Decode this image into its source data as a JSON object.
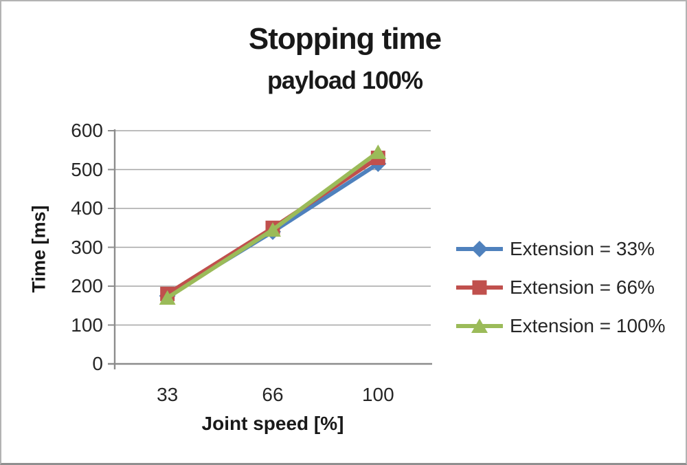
{
  "chart_data": {
    "type": "line",
    "title": "Stopping time",
    "subtitle": "payload 100%",
    "xlabel": "Joint speed [%]",
    "ylabel": "Time [ms]",
    "categories": [
      "33",
      "66",
      "100"
    ],
    "series": [
      {
        "name": "Extension = 33%",
        "color": "#4F81BD",
        "marker": "diamond",
        "values": [
          175,
          340,
          515
        ]
      },
      {
        "name": "Extension = 66%",
        "color": "#C0504D",
        "marker": "square",
        "values": [
          180,
          350,
          530
        ]
      },
      {
        "name": "Extension = 100%",
        "color": "#9BBB59",
        "marker": "triangle",
        "values": [
          170,
          345,
          545
        ]
      }
    ],
    "ylim": [
      0,
      600
    ],
    "y_ticks": [
      0,
      100,
      200,
      300,
      400,
      500,
      600
    ],
    "grid": true,
    "legend_position": "right",
    "colors": {
      "gridline": "#A6A6A6",
      "axis": "#8C8C8C",
      "tick_text": "#262626",
      "title_text": "#191919",
      "background": "#FFFFFF",
      "frame_border": "#B3B3B3"
    }
  }
}
